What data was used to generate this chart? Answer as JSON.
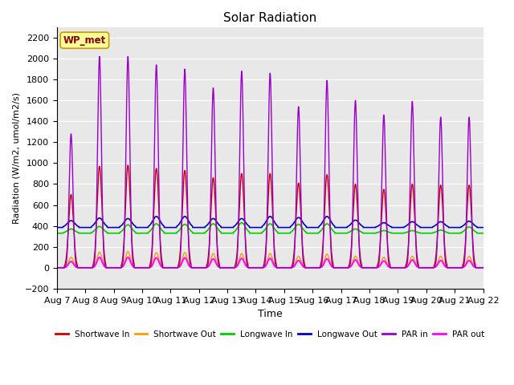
{
  "title": "Solar Radiation",
  "xlabel": "Time",
  "ylabel": "Radiation (W/m2, umol/m2/s)",
  "ylim": [
    -200,
    2300
  ],
  "yticks": [
    -200,
    0,
    200,
    400,
    600,
    800,
    1000,
    1200,
    1400,
    1600,
    1800,
    2000,
    2200
  ],
  "start_day": 7,
  "end_day": 22,
  "num_days": 15,
  "points_per_day": 144,
  "series": {
    "shortwave_in": {
      "color": "#cc0000",
      "label": "Shortwave In",
      "peaks": [
        700,
        970,
        980,
        950,
        930,
        860,
        900,
        900,
        810,
        890,
        800,
        750,
        800,
        790,
        790
      ]
    },
    "shortwave_out": {
      "color": "#ff9900",
      "label": "Shortwave Out",
      "peaks": [
        100,
        150,
        155,
        145,
        145,
        135,
        135,
        135,
        110,
        130,
        110,
        100,
        110,
        110,
        110
      ]
    },
    "longwave_in": {
      "color": "#00cc00",
      "label": "Longwave In",
      "base": 330,
      "peaks": [
        370,
        395,
        410,
        420,
        415,
        420,
        430,
        420,
        415,
        420,
        370,
        355,
        355,
        360,
        390
      ]
    },
    "longwave_out": {
      "color": "#0000cc",
      "label": "Longwave Out",
      "base": 385,
      "peaks": [
        450,
        475,
        470,
        490,
        490,
        470,
        470,
        490,
        480,
        490,
        455,
        430,
        440,
        440,
        445
      ]
    },
    "par_in": {
      "color": "#9900cc",
      "label": "PAR in",
      "peaks": [
        1280,
        2020,
        2020,
        1940,
        1900,
        1720,
        1880,
        1860,
        1540,
        1790,
        1600,
        1460,
        1590,
        1440,
        1440
      ]
    },
    "par_out": {
      "color": "#ff00ff",
      "label": "PAR out",
      "peaks": [
        60,
        100,
        100,
        95,
        95,
        85,
        90,
        90,
        70,
        85,
        75,
        65,
        75,
        70,
        70
      ]
    }
  },
  "annotation_text": "WP_met",
  "annotation_color": "#8b0000",
  "annotation_bg": "#ffff99",
  "background_color": "#e8e8e8",
  "grid_color": "#ffffff"
}
